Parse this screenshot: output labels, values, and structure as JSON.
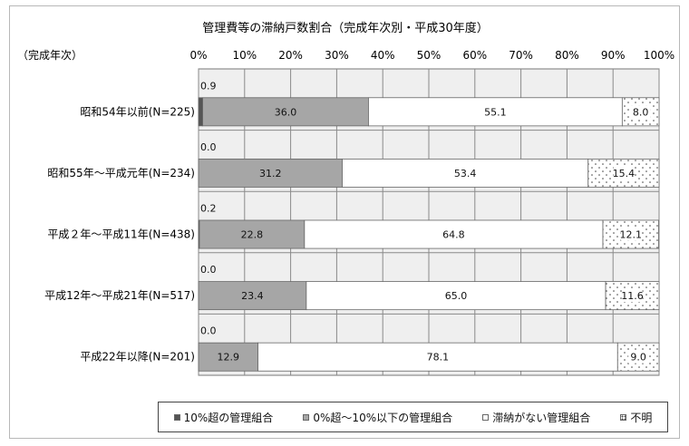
{
  "chart_data": {
    "type": "bar",
    "orientation": "horizontal",
    "stacked": true,
    "title": "管理費等の滞納戸数割合（完成年次別・平成30年度）",
    "ylabel": "（完成年次）",
    "categories": [
      "昭和54年以前(N=225)",
      "昭和55年～平成元年(N=234)",
      "平成２年～平成11年(N=438)",
      "平成12年～平成21年(N=517)",
      "平成22年以降(N=201)"
    ],
    "xlim": [
      0,
      100
    ],
    "xticks": [
      "0%",
      "10%",
      "20%",
      "30%",
      "40%",
      "50%",
      "60%",
      "70%",
      "80%",
      "90%",
      "100%"
    ],
    "grid": true,
    "legend_position": "bottom",
    "series": [
      {
        "name": "10%超の管理組合",
        "values": [
          0.9,
          0.0,
          0.2,
          0.0,
          0.0
        ],
        "labels": [
          "0.9",
          "0.0",
          "0.2",
          "0.0",
          "0.0"
        ],
        "color": "#555555"
      },
      {
        "name": "0%超～10%以下の管理組合",
        "values": [
          36.0,
          31.2,
          22.8,
          23.4,
          12.9
        ],
        "labels": [
          "36.0",
          "31.2",
          "22.8",
          "23.4",
          "12.9"
        ],
        "color": "#a6a6a6"
      },
      {
        "name": "滞納がない管理組合",
        "values": [
          55.1,
          53.4,
          64.8,
          65.0,
          78.1
        ],
        "labels": [
          "55.1",
          "53.4",
          "64.8",
          "65.0",
          "78.1"
        ],
        "color": "#ffffff"
      },
      {
        "name": "不明",
        "values": [
          8.0,
          15.4,
          12.1,
          11.6,
          9.0
        ],
        "labels": [
          "8.0",
          "15.4",
          "12.1",
          "11.6",
          "9.0"
        ],
        "color": "dots"
      }
    ]
  }
}
